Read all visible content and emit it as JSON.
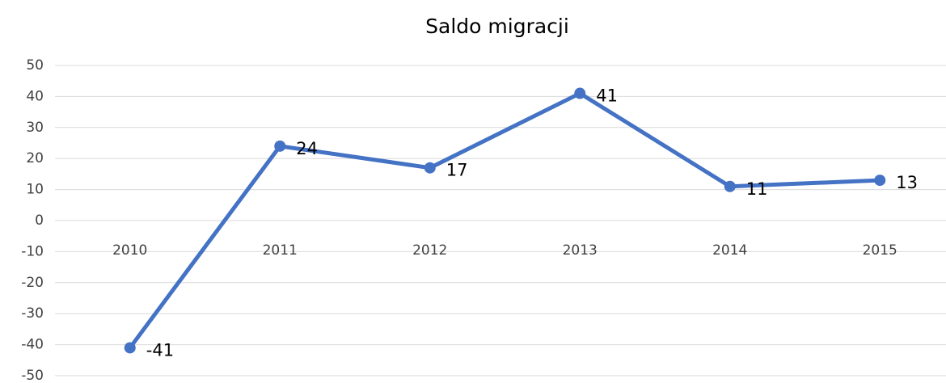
{
  "chart_data": {
    "type": "line",
    "title": "Saldo migracji",
    "categories": [
      "2010",
      "2011",
      "2012",
      "2013",
      "2014",
      "2015"
    ],
    "values": [
      -41,
      24,
      17,
      41,
      11,
      13
    ],
    "color": "#4472c4",
    "ylim": [
      -50,
      50
    ],
    "yticks": [
      -50,
      -40,
      -30,
      -20,
      -10,
      0,
      10,
      20,
      30,
      40,
      50
    ],
    "grid": true
  }
}
